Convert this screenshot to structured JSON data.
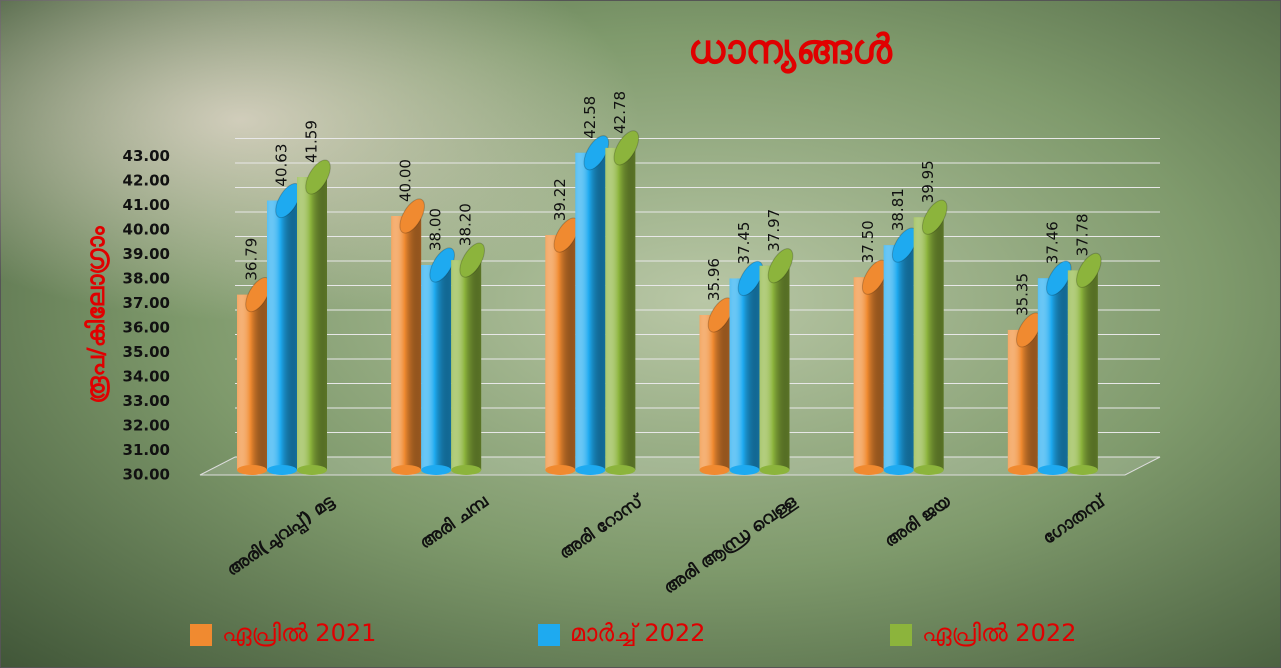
{
  "chart_data": {
    "type": "bar3d",
    "title": "ധാന്യങ്ങൾ",
    "y_label": "രൂപ/കിലോഗ്രാം",
    "categories": [
      "അരി(ചുവപ്പ്) മട്ട",
      "അരി ചമ്പ",
      "അരി റോസ്",
      "അരി ആന്ധ്ര വെള്ള",
      "അരി ജയ",
      "ഗോതമ്പ്"
    ],
    "series": [
      {
        "name": "ഏപ്രിൽ  2021",
        "color": "#f08a30",
        "values": [
          36.79,
          40.0,
          39.22,
          35.96,
          37.5,
          35.35
        ],
        "value_labels": [
          "36.79",
          "40.00",
          "39.22",
          "35.96",
          "37.50",
          "35.35"
        ]
      },
      {
        "name": "മാർച്ച് 2022",
        "color": "#1eaaf0",
        "values": [
          40.63,
          38.0,
          42.58,
          37.45,
          38.81,
          37.46
        ],
        "value_labels": [
          "40.63",
          "38.00",
          "42.58",
          "37.45",
          "38.81",
          "37.46"
        ]
      },
      {
        "name": "ഏപ്രിൽ 2022",
        "color": "#8cb43c",
        "values": [
          41.59,
          38.2,
          42.78,
          37.97,
          39.95,
          37.78
        ],
        "value_labels": [
          "41.59",
          "38.20",
          "42.78",
          "37.97",
          "39.95",
          "37.78"
        ]
      }
    ],
    "ylim": [
      30,
      44
    ],
    "yticks": [
      {
        "value": 30,
        "label": "30.00"
      },
      {
        "value": 31,
        "label": "31.00"
      },
      {
        "value": 32,
        "label": "32.00"
      },
      {
        "value": 33,
        "label": "33.00"
      },
      {
        "value": 34,
        "label": "34.00"
      },
      {
        "value": 35,
        "label": "35.00"
      },
      {
        "value": 36,
        "label": "36.00"
      },
      {
        "value": 37,
        "label": "37.00"
      },
      {
        "value": 38,
        "label": "38.00"
      },
      {
        "value": 39,
        "label": "39.00"
      },
      {
        "value": 40,
        "label": "40.00"
      },
      {
        "value": 41,
        "label": "41.00"
      },
      {
        "value": 42,
        "label": "42.00"
      },
      {
        "value": 43,
        "label": "43.00"
      }
    ],
    "grid": true
  }
}
